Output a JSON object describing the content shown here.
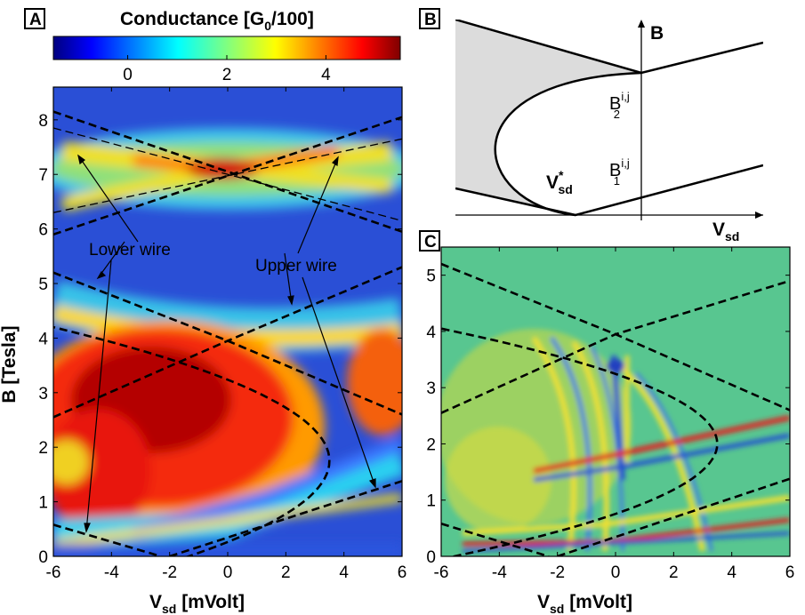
{
  "chart_data": [
    {
      "panel": "A",
      "type": "heatmap",
      "colorbar": {
        "title_main": "Conductance [G",
        "title_sub": "0",
        "title_tail": "/100]",
        "range": [
          -1.5,
          5.5
        ],
        "ticks": [
          "0",
          "2",
          "4"
        ],
        "tick_values": [
          0,
          2,
          4
        ],
        "colormap": "jet"
      },
      "xlabel_main": "V",
      "xlabel_sub": "sd",
      "xlabel_tail": " [mVolt]",
      "ylabel": "B [Tesla]",
      "xlim": [
        -6,
        6
      ],
      "ylim": [
        0,
        8.6
      ],
      "xticks": [
        "-6",
        "-4",
        "-2",
        "0",
        "2",
        "4",
        "6"
      ],
      "yticks": [
        "0",
        "1",
        "2",
        "3",
        "4",
        "5",
        "6",
        "7",
        "8"
      ],
      "annotations": [
        "Lower wire",
        "Upper wire"
      ],
      "overlay_lines": {
        "lower_low": [
          [
            -6,
            0.58
          ],
          [
            -2.3,
            0.0
          ]
        ],
        "lower_high": [
          [
            -6,
            5.2
          ],
          [
            0,
            3.95
          ],
          [
            6,
            2.6
          ]
        ],
        "upper_low": [
          [
            -2,
            0.0
          ],
          [
            6,
            1.38
          ]
        ],
        "upper_high": [
          [
            -6,
            2.55
          ],
          [
            0,
            3.95
          ],
          [
            6,
            5.3
          ]
        ],
        "x_line_a": [
          [
            -6,
            8.15
          ],
          [
            6,
            5.95
          ]
        ],
        "x_line_b": [
          [
            -6,
            5.9
          ],
          [
            6,
            8.05
          ]
        ],
        "thin_a": [
          [
            -6,
            7.85
          ],
          [
            6,
            6.15
          ]
        ],
        "thin_b": [
          [
            -6,
            6.3
          ],
          [
            6,
            7.65
          ]
        ],
        "parabola": {
          "x_left": -6.0,
          "x_right": 3.5,
          "b_center": 1.75,
          "b_halfwidth": 2.45
        }
      }
    },
    {
      "panel": "B",
      "type": "diagram",
      "axis_labels": {
        "y": "B",
        "x_main": "V",
        "x_sub": "sd"
      },
      "labels": {
        "vsd_star_main": "V",
        "vsd_star_sup": "*",
        "vsd_star_sub": "sd",
        "b2_main": "B",
        "b2_sup": "i,j",
        "b2_sub": "2",
        "b1_main": "B",
        "b1_sup": "i,j",
        "b1_sub": "1"
      }
    },
    {
      "panel": "C",
      "type": "heatmap",
      "colormap": "jet",
      "xlabel_main": "V",
      "xlabel_sub": "sd",
      "xlabel_tail": " [mVolt]",
      "ylabel": "",
      "xlim": [
        -6,
        6
      ],
      "ylim": [
        0,
        5.5
      ],
      "xticks": [
        "-6",
        "-4",
        "-2",
        "0",
        "2",
        "4",
        "6"
      ],
      "yticks": [
        "0",
        "1",
        "2",
        "3",
        "4",
        "5"
      ],
      "overlay_lines": {
        "lower_low": [
          [
            -6,
            0.58
          ],
          [
            -2.3,
            0.0
          ]
        ],
        "lower_high": [
          [
            -6,
            5.2
          ],
          [
            0,
            3.95
          ],
          [
            6,
            2.6
          ]
        ],
        "upper_low": [
          [
            -2,
            0.0
          ],
          [
            6,
            1.38
          ]
        ],
        "upper_high": [
          [
            -6,
            2.55
          ],
          [
            0,
            3.95
          ],
          [
            6,
            4.9
          ]
        ],
        "parabola": {
          "x_left": -6.0,
          "x_right": 3.5,
          "b_center": 2.0,
          "b_halfwidth": 2.05
        }
      }
    }
  ]
}
